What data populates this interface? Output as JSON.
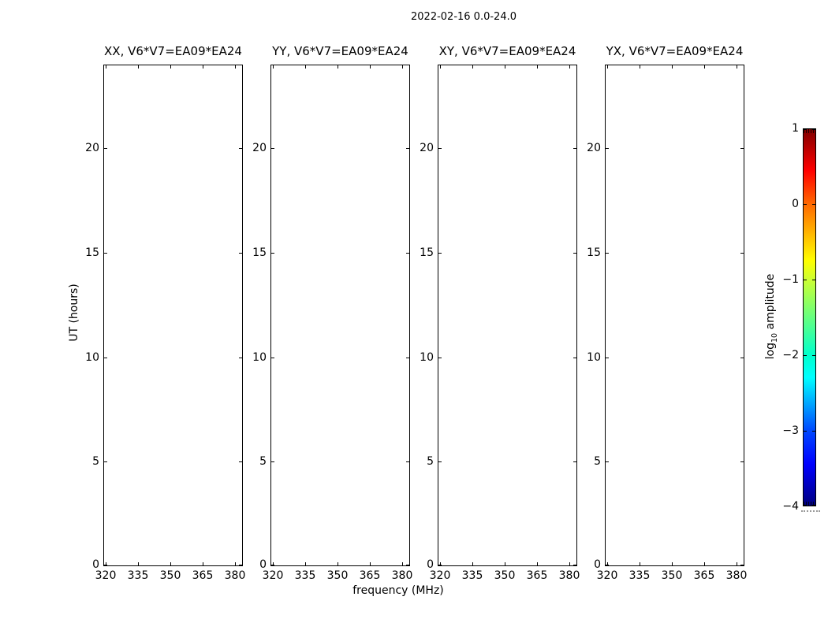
{
  "figure": {
    "suptitle": "2022-02-16 0.0-24.0"
  },
  "panels": [
    {
      "title": "XX, V6*V7=EA09*EA24"
    },
    {
      "title": "YY, V6*V7=EA09*EA24"
    },
    {
      "title": "XY, V6*V7=EA09*EA24"
    },
    {
      "title": "YX, V6*V7=EA09*EA24"
    }
  ],
  "axes": {
    "xlabel": "frequency (MHz)",
    "ylabel": "UT (hours)",
    "x_ticks": [
      320,
      335,
      350,
      365,
      380
    ],
    "y_ticks": [
      0,
      5,
      10,
      15,
      20
    ],
    "x_tick_labels": [
      "320",
      "335",
      "350",
      "365",
      "380"
    ],
    "y_tick_labels": [
      "0",
      "5",
      "10",
      "15",
      "20"
    ],
    "xlim": [
      318.9,
      383.7
    ],
    "ylim": [
      0,
      24
    ]
  },
  "colorbar": {
    "label_log": "log",
    "label_sub": "10",
    "label_rest": " amplitude",
    "ticks": [
      1,
      0,
      -1,
      -2,
      -3,
      -4
    ],
    "tick_labels": [
      "1",
      "0",
      "−1",
      "−2",
      "−3",
      "−4"
    ],
    "clim": [
      -4,
      1
    ],
    "colormap": "jet",
    "colormap_stops": [
      [
        "#800000",
        0
      ],
      [
        "#ff0000",
        11
      ],
      [
        "#ff6a00",
        20
      ],
      [
        "#ffff00",
        35
      ],
      [
        "#ccff33",
        40
      ],
      [
        "#00ffcc",
        60
      ],
      [
        "#00ffff",
        66
      ],
      [
        "#0049ff",
        80
      ],
      [
        "#0000ff",
        89
      ],
      [
        "#000080",
        100
      ]
    ]
  },
  "chart_data": {
    "type": "heatmap",
    "title": "2022-02-16 0.0-24.0",
    "xlabel": "frequency (MHz)",
    "ylabel": "UT (hours)",
    "x_ticks": [
      320,
      335,
      350,
      365,
      380
    ],
    "y_ticks": [
      0,
      5,
      10,
      15,
      20
    ],
    "xlim": [
      318.9,
      383.7
    ],
    "ylim": [
      0,
      24
    ],
    "panels": [
      {
        "title": "XX, V6*V7=EA09*EA24",
        "values": []
      },
      {
        "title": "YY, V6*V7=EA09*EA24",
        "values": []
      },
      {
        "title": "XY, V6*V7=EA09*EA24",
        "values": []
      },
      {
        "title": "YX, V6*V7=EA09*EA24",
        "values": []
      }
    ],
    "colorbar": {
      "label": "log10 amplitude",
      "ticks": [
        1,
        0,
        -1,
        -2,
        -3,
        -4
      ],
      "clim": [
        -4,
        1
      ],
      "colormap": "jet"
    },
    "legend": "none",
    "grid": false,
    "note": "all four panels contain no rendered data (blank white axes)"
  }
}
